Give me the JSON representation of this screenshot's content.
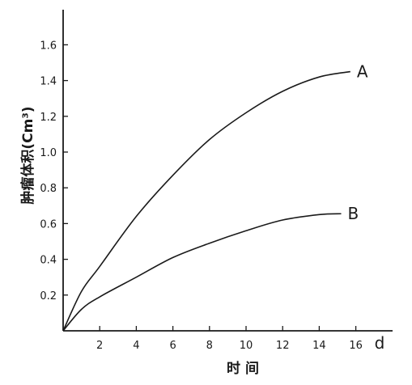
{
  "chart_data": {
    "type": "line",
    "title": "",
    "xlabel": "时 间",
    "x_unit": "d",
    "ylabel": "肿瘤体积(Cm³)",
    "xlim": [
      0,
      16
    ],
    "ylim": [
      0,
      1.75
    ],
    "x_ticks": [
      2,
      4,
      6,
      8,
      10,
      12,
      14,
      16
    ],
    "x_tick_labels": [
      "2",
      "4",
      "6",
      "8",
      "10",
      "12",
      "14",
      "16"
    ],
    "y_ticks": [
      0.2,
      0.4,
      0.6,
      0.8,
      1.0,
      1.2,
      1.4,
      1.6
    ],
    "y_tick_labels": [
      "0.2",
      "0.4",
      "0.6",
      "0.8",
      "1.0",
      "1.2",
      "1.4",
      "1.6"
    ],
    "grid": false,
    "series": [
      {
        "name": "A",
        "x": [
          0,
          1,
          2,
          4,
          6,
          8,
          10,
          12,
          14,
          15.7
        ],
        "y": [
          0,
          0.22,
          0.36,
          0.64,
          0.87,
          1.07,
          1.22,
          1.34,
          1.42,
          1.45
        ]
      },
      {
        "name": "B",
        "x": [
          0,
          1,
          2,
          4,
          6,
          8,
          10,
          12,
          14,
          15.2
        ],
        "y": [
          0,
          0.12,
          0.19,
          0.3,
          0.41,
          0.49,
          0.56,
          0.62,
          0.65,
          0.655
        ]
      }
    ],
    "colors": {
      "axis": "#1a1a1a",
      "line": "#1a1a1a"
    }
  }
}
